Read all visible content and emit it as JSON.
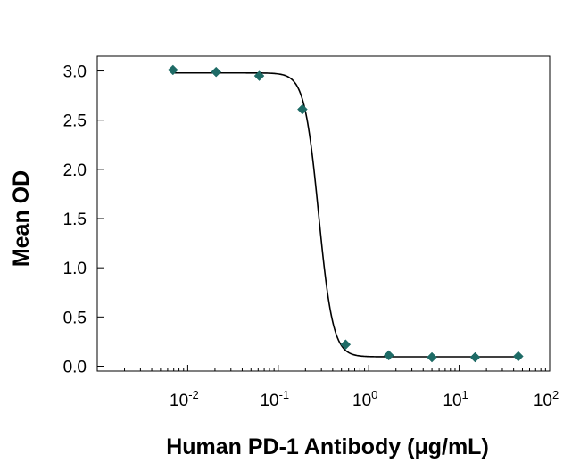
{
  "chart_data": {
    "type": "scatter",
    "title": "",
    "xlabel": "Human PD-1 Antibody (μg/mL)",
    "ylabel": "Mean OD",
    "x_scale": "log",
    "xlim": [
      0.001,
      100
    ],
    "ylim": [
      -0.05,
      3.15
    ],
    "grid": false,
    "x_ticks": [
      {
        "value": 0.01,
        "base": "10",
        "exp": "-2"
      },
      {
        "value": 0.1,
        "base": "10",
        "exp": "-1"
      },
      {
        "value": 1,
        "base": "10",
        "exp": "0"
      },
      {
        "value": 10,
        "base": "10",
        "exp": "1"
      },
      {
        "value": 100,
        "base": "10",
        "exp": "2"
      }
    ],
    "y_ticks": [
      {
        "value": 0.0,
        "label": "0.0"
      },
      {
        "value": 0.5,
        "label": "0.5"
      },
      {
        "value": 1.0,
        "label": "1.0"
      },
      {
        "value": 1.5,
        "label": "1.5"
      },
      {
        "value": 2.0,
        "label": "2.0"
      },
      {
        "value": 2.5,
        "label": "2.5"
      },
      {
        "value": 3.0,
        "label": "3.0"
      }
    ],
    "series": [
      {
        "marker": "diamond",
        "color": "#1e6b66",
        "x": [
          0.00686,
          0.0206,
          0.0617,
          0.185,
          0.556,
          1.667,
          5.0,
          15.0,
          45.0
        ],
        "y": [
          3.01,
          2.99,
          2.95,
          2.61,
          0.22,
          0.11,
          0.09,
          0.09,
          0.1
        ]
      }
    ],
    "fit_curve": {
      "type": "4PL",
      "color": "#000000",
      "top": 2.98,
      "bottom": 0.095,
      "ec50": 0.28,
      "hill": 5.5
    }
  }
}
